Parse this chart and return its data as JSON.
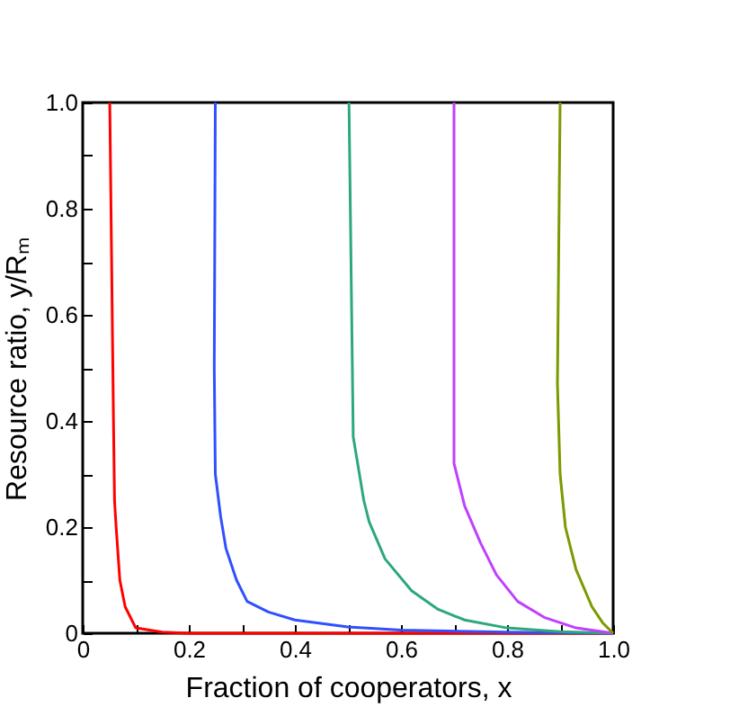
{
  "chart_data": {
    "type": "line",
    "xlabel": "Fraction of cooperators, x",
    "ylabel": "Resource ratio, y/Rₘ",
    "xlim": [
      0,
      1
    ],
    "ylim": [
      0,
      1
    ],
    "xticks": [
      {
        "value": 0,
        "label": "0"
      },
      {
        "value": 0.1,
        "label": null
      },
      0.2,
      {
        "value": 0.3,
        "label": null
      },
      0.4,
      {
        "value": 0.5,
        "label": null
      },
      0.6,
      {
        "value": 0.7,
        "label": null
      },
      0.8,
      {
        "value": 0.9,
        "label": null
      },
      {
        "value": 1,
        "label": "1.0"
      }
    ],
    "yticks": [
      {
        "value": 0,
        "label": "0"
      },
      {
        "value": 0.1,
        "label": null
      },
      0.2,
      {
        "value": 0.3,
        "label": null
      },
      0.4,
      {
        "value": 0.5,
        "label": null
      },
      0.6,
      {
        "value": 0.7,
        "label": null
      },
      0.8,
      {
        "value": 0.9,
        "label": null
      },
      {
        "value": 1,
        "label": "1.0"
      }
    ],
    "grid": false,
    "legend": false,
    "marker": "none",
    "line_style": "solid",
    "series": [
      {
        "color": "#ff0000",
        "x": [
          0.051,
          0.058,
          0.06,
          0.063,
          0.07,
          0.08,
          0.1,
          0.15,
          0.2,
          1
        ],
        "values": [
          1,
          0.4,
          0.25,
          0.2,
          0.1,
          0.05,
          0.01,
          0.002,
          0,
          0
        ]
      },
      {
        "color": "#3050ff",
        "x": [
          0.25,
          0.248,
          0.25,
          0.26,
          0.27,
          0.29,
          0.31,
          0.35,
          0.4,
          0.5,
          0.6,
          0.8,
          1
        ],
        "values": [
          1,
          0.5,
          0.3,
          0.22,
          0.16,
          0.1,
          0.06,
          0.04,
          0.025,
          0.012,
          0.006,
          0.002,
          0
        ]
      },
      {
        "color": "#2ca87a",
        "x": [
          0.502,
          0.51,
          0.53,
          0.54,
          0.57,
          0.62,
          0.67,
          0.72,
          0.8,
          0.9,
          1
        ],
        "values": [
          1,
          0.37,
          0.25,
          0.21,
          0.14,
          0.08,
          0.045,
          0.025,
          0.01,
          0.003,
          0
        ]
      },
      {
        "color": "#c040ff",
        "x": [
          0.7,
          0.7,
          0.72,
          0.75,
          0.78,
          0.82,
          0.87,
          0.93,
          1
        ],
        "values": [
          1,
          0.32,
          0.24,
          0.17,
          0.11,
          0.06,
          0.03,
          0.01,
          0
        ]
      },
      {
        "color": "#7a9a00",
        "x": [
          0.9,
          0.895,
          0.9,
          0.91,
          0.93,
          0.96,
          0.98,
          1
        ],
        "values": [
          1,
          0.47,
          0.3,
          0.2,
          0.12,
          0.05,
          0.02,
          0
        ]
      }
    ]
  }
}
